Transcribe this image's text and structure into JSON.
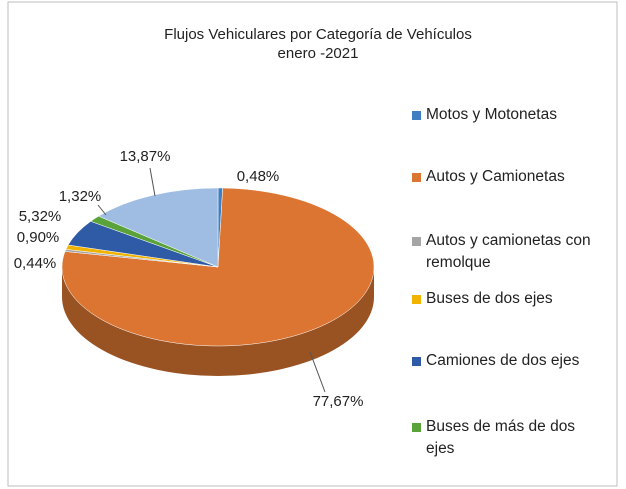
{
  "chart_data": {
    "type": "pie3d",
    "title": "Flujos Vehiculares por Categoría de Vehículos",
    "subtitle": "enero -2021",
    "categories": [
      "Motos y Motonetas",
      "Autos y Camionetas",
      "Autos y camionetas con remolque",
      "Buses de dos ejes",
      "Camiones de dos ejes",
      "Buses de más de dos ejes",
      null
    ],
    "values": [
      0.48,
      77.67,
      0.44,
      0.9,
      5.32,
      1.32,
      13.87
    ],
    "value_labels": [
      "0,48%",
      "77,67%",
      "0,44%",
      "0,90%",
      "5,32%",
      "1,32%",
      "13,87%"
    ],
    "colors": [
      "#3f7fc1",
      "#db7531",
      "#a5a5a5",
      "#f0b400",
      "#2f5ba6",
      "#5aa23a",
      "#9fbde2"
    ],
    "legend": "right"
  }
}
